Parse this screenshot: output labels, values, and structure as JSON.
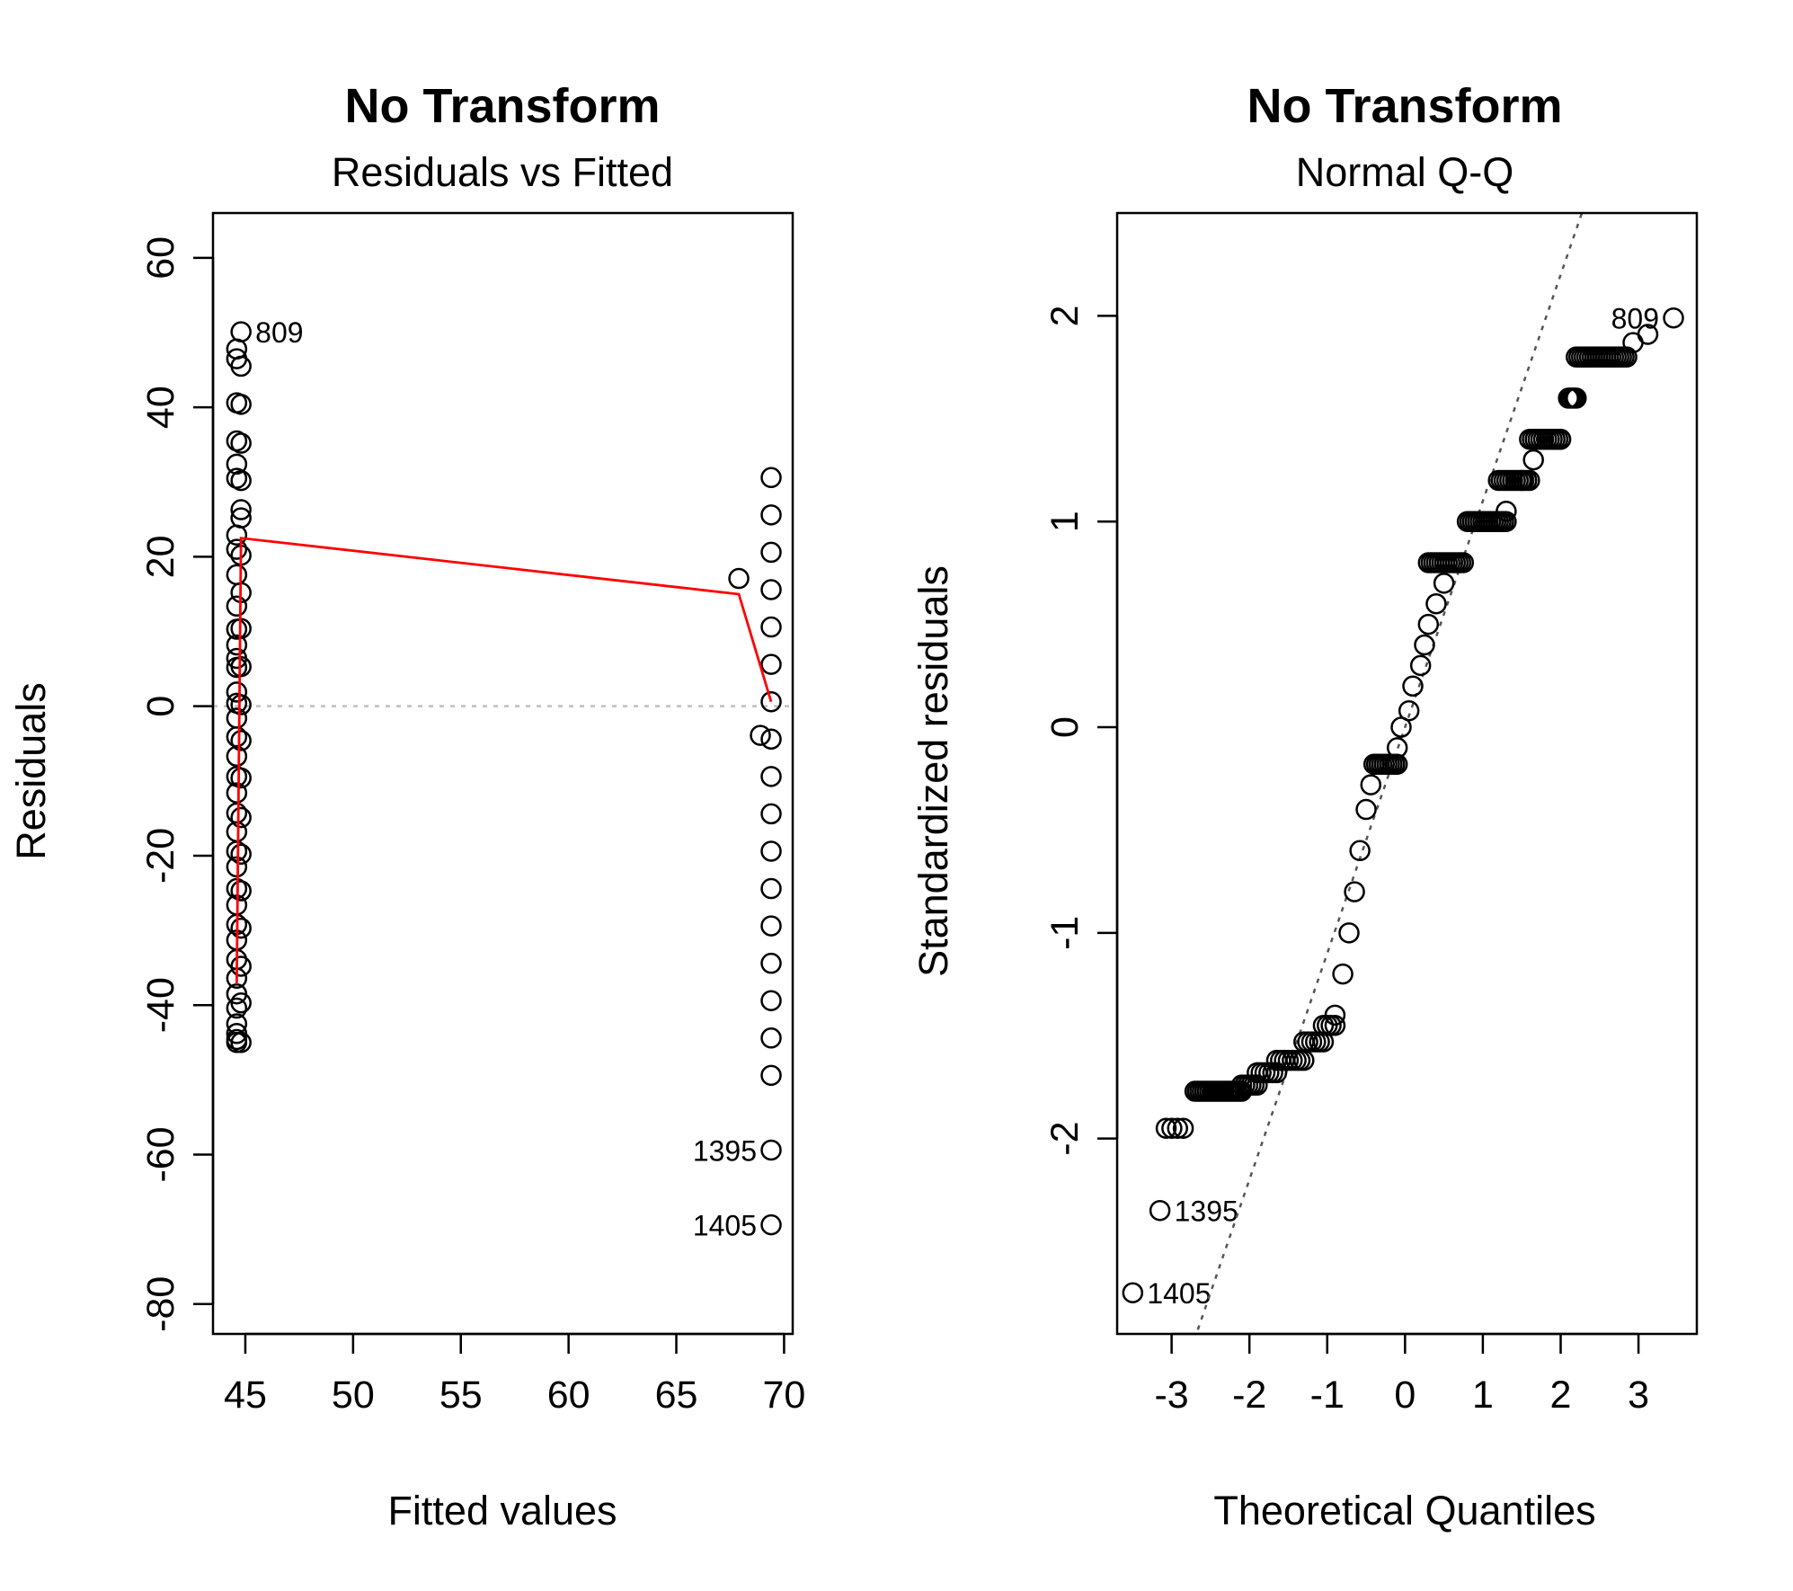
{
  "chart_data": [
    {
      "type": "scatter",
      "title": "No Transform",
      "subtitle": "Residuals vs Fitted",
      "xlabel": "Fitted values",
      "ylabel": "Residuals",
      "xlim": [
        43.5,
        70.4
      ],
      "ylim": [
        -84,
        66
      ],
      "xticks": [
        45,
        50,
        55,
        60,
        65,
        70
      ],
      "yticks": [
        -80,
        -60,
        -40,
        -20,
        0,
        20,
        40,
        60
      ],
      "colors": {
        "points": "#000000",
        "smoother": "#ff0000",
        "zero_line": "#bebebe"
      },
      "zero_line": 0,
      "groups": [
        {
          "x": 44.6,
          "y": [
            47.8,
            46.5,
            40.6,
            35.5,
            32.4,
            30.5,
            22.9,
            21.0,
            17.6,
            13.4,
            10.3,
            8.2,
            6.4,
            5.2,
            1.9,
            0.4,
            -1.6,
            -4.1,
            -6.7,
            -9.4,
            -11.6,
            -14.3,
            -16.8,
            -19.4,
            -21.5,
            -24.4,
            -26.6,
            -29.2,
            -31.3,
            -33.9,
            -36.4,
            -38.5,
            -40.4,
            -42.5,
            -43.8,
            -44.6,
            -45.0
          ]
        },
        {
          "x": 44.8,
          "y": [
            50.1,
            45.5,
            40.4,
            35.2,
            30.2,
            26.3,
            25.2,
            20.2,
            15.2,
            10.4,
            5.3,
            0.2,
            -4.6,
            -9.6,
            -14.9,
            -19.8,
            -24.7,
            -29.7,
            -34.8,
            -39.7,
            -45.0
          ]
        },
        {
          "x": 69.4,
          "y": [
            30.6,
            25.6,
            20.6,
            15.6,
            10.6,
            5.6,
            0.6,
            -4.4,
            -9.4,
            -14.4,
            -19.4,
            -24.4,
            -29.4,
            -34.4,
            -39.4,
            -44.4,
            -49.4,
            -59.4,
            -69.4
          ]
        }
      ],
      "extra_points": [
        {
          "x": 67.9,
          "y": 17.1
        },
        {
          "x": 68.9,
          "y": -3.9
        }
      ],
      "smoother": [
        {
          "x": 44.6,
          "y": -37.2
        },
        {
          "x": 44.8,
          "y": 22.5
        },
        {
          "x": 67.9,
          "y": 15.0
        },
        {
          "x": 69.4,
          "y": 0.6
        }
      ],
      "labels": [
        {
          "text": "809",
          "x": 44.8,
          "y": 50.1,
          "side": "right"
        },
        {
          "text": "1395",
          "x": 69.4,
          "y": -59.4,
          "side": "left"
        },
        {
          "text": "1405",
          "x": 69.4,
          "y": -69.4,
          "side": "left"
        }
      ]
    },
    {
      "type": "scatter",
      "title": "No Transform",
      "subtitle": "Normal Q-Q",
      "xlabel": "Theoretical Quantiles",
      "ylabel": "Standardized residuals",
      "xlim": [
        -3.7,
        3.75
      ],
      "ylim": [
        -2.95,
        2.5
      ],
      "xticks": [
        -3,
        -2,
        -1,
        0,
        1,
        2,
        3
      ],
      "yticks": [
        -2,
        -1,
        0,
        1,
        2
      ],
      "colors": {
        "points": "#000000",
        "reference_line": "#555555"
      },
      "reference_line": {
        "intercept": 0.0,
        "slope": 1.1
      },
      "steps": [
        {
          "x0": -3.07,
          "x1": -2.85,
          "y": -1.95,
          "n": 4
        },
        {
          "x0": -2.7,
          "x1": -2.1,
          "y": -1.77,
          "n": 20
        },
        {
          "x0": -2.1,
          "x1": -1.9,
          "y": -1.74,
          "n": 6
        },
        {
          "x0": -1.9,
          "x1": -1.65,
          "y": -1.68,
          "n": 6
        },
        {
          "x0": -1.65,
          "x1": -1.3,
          "y": -1.62,
          "n": 8
        },
        {
          "x0": -1.3,
          "x1": -1.05,
          "y": -1.53,
          "n": 6
        },
        {
          "x0": -1.05,
          "x1": -0.9,
          "y": -1.45,
          "n": 4
        },
        {
          "x0": -0.4,
          "x1": -0.1,
          "y": -0.18,
          "n": 10
        },
        {
          "x0": 0.3,
          "x1": 0.75,
          "y": 0.8,
          "n": 14
        },
        {
          "x0": 0.8,
          "x1": 1.3,
          "y": 1.0,
          "n": 16
        },
        {
          "x0": 1.2,
          "x1": 1.6,
          "y": 1.2,
          "n": 12
        },
        {
          "x0": 1.6,
          "x1": 2.0,
          "y": 1.4,
          "n": 12
        },
        {
          "x0": 2.1,
          "x1": 2.2,
          "y": 1.6,
          "n": 5
        },
        {
          "x0": 2.2,
          "x1": 2.85,
          "y": 1.8,
          "n": 20
        }
      ],
      "curve": [
        {
          "x": -0.9,
          "y": -1.4
        },
        {
          "x": -0.8,
          "y": -1.2
        },
        {
          "x": -0.72,
          "y": -1.0
        },
        {
          "x": -0.65,
          "y": -0.8
        },
        {
          "x": -0.58,
          "y": -0.6
        },
        {
          "x": -0.5,
          "y": -0.4
        },
        {
          "x": -0.44,
          "y": -0.28
        },
        {
          "x": -0.1,
          "y": -0.1
        },
        {
          "x": -0.05,
          "y": 0.0
        },
        {
          "x": 0.05,
          "y": 0.08
        },
        {
          "x": 0.1,
          "y": 0.2
        },
        {
          "x": 0.2,
          "y": 0.3
        },
        {
          "x": 0.25,
          "y": 0.4
        },
        {
          "x": 0.3,
          "y": 0.5
        },
        {
          "x": 0.4,
          "y": 0.6
        },
        {
          "x": 0.5,
          "y": 0.7
        },
        {
          "x": 1.3,
          "y": 1.05
        },
        {
          "x": 1.5,
          "y": 1.2
        },
        {
          "x": 1.65,
          "y": 1.3
        },
        {
          "x": 2.0,
          "y": 1.4
        }
      ],
      "tail_points": [
        {
          "x": -3.5,
          "y": -2.75
        },
        {
          "x": -3.15,
          "y": -2.35
        },
        {
          "x": 2.93,
          "y": 1.87
        },
        {
          "x": 3.12,
          "y": 1.91
        },
        {
          "x": 3.45,
          "y": 1.99
        }
      ],
      "labels": [
        {
          "text": "809",
          "x": 3.45,
          "y": 1.99,
          "side": "left"
        },
        {
          "text": "1395",
          "x": -3.15,
          "y": -2.35,
          "side": "right"
        },
        {
          "text": "1405",
          "x": -3.5,
          "y": -2.75,
          "side": "right"
        }
      ]
    }
  ]
}
